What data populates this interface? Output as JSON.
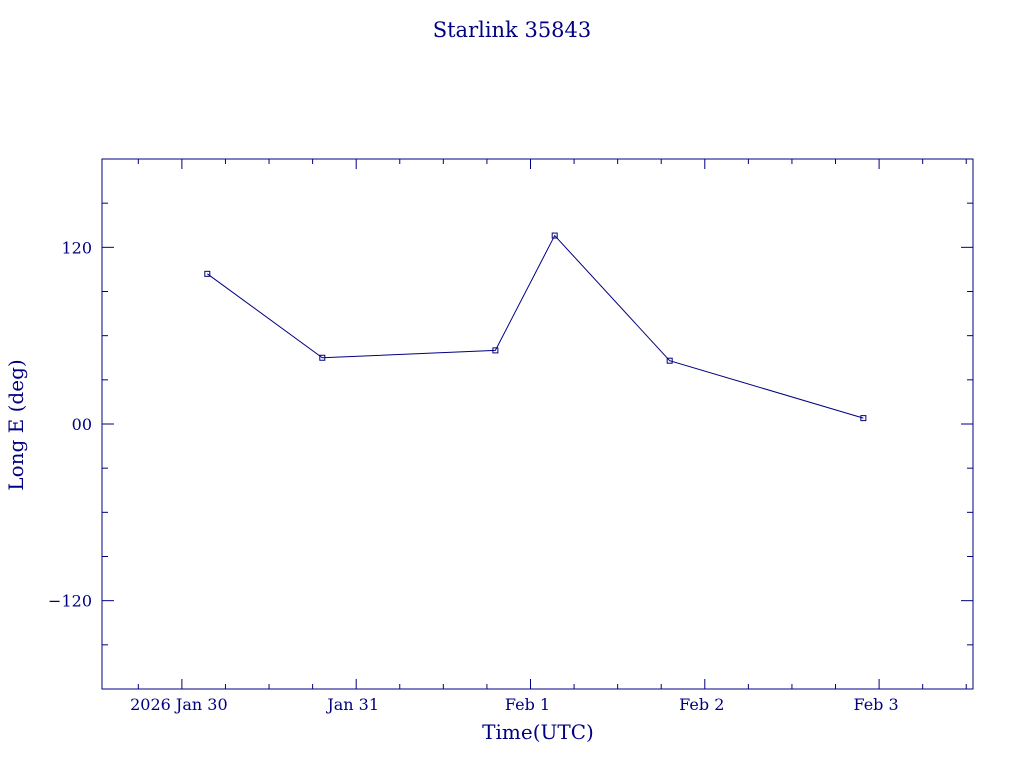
{
  "chart_data": {
    "type": "line",
    "title": "Starlink 35843",
    "xlabel": "Time(UTC)",
    "ylabel": "Long E (deg)",
    "x_tick_labels": [
      "2026 Jan 30",
      "Jan 31",
      "Feb  1",
      "Feb  2",
      "Feb  3"
    ],
    "y_tick_labels": [
      "120",
      "00",
      "−120"
    ],
    "y_tick_values": [
      120,
      0,
      -120
    ],
    "xlim": [
      "2026-01-29T13:00:00Z",
      "2026-02-03T13:00:00Z"
    ],
    "ylim": [
      -180,
      180
    ],
    "grid": false,
    "legend": "none",
    "marker": "hollow-square",
    "color": "#000080",
    "series": [
      {
        "x": [
          "2026-01-30T03:30:00Z",
          "2026-01-30T19:20:00Z",
          "2026-01-31T19:10:00Z",
          "2026-02-01T03:20:00Z",
          "2026-02-01T19:10:00Z",
          "2026-02-02T21:50:00Z"
        ],
        "y": [
          102,
          45,
          50,
          128,
          43,
          4
        ]
      }
    ]
  }
}
